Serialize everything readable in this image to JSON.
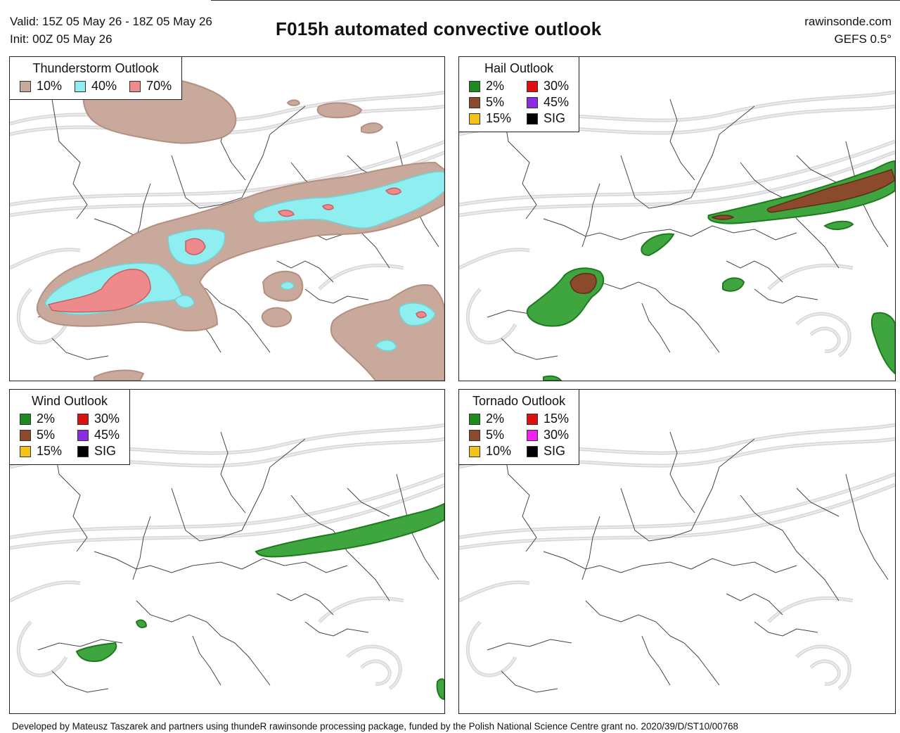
{
  "header": {
    "valid": "Valid: 15Z 05 May 26 - 18Z 05 May 26",
    "init": "Init: 00Z 05 May 26",
    "title": "F015h automated convective outlook",
    "site": "rawinsonde.com",
    "model": "GEFS 0.5°"
  },
  "panels": {
    "thunderstorm": {
      "title": "Thunderstorm Outlook",
      "items": [
        {
          "label": "10%",
          "color": "#c9a99b"
        },
        {
          "label": "40%",
          "color": "#8feff0"
        },
        {
          "label": "70%",
          "color": "#ef8a8c"
        }
      ]
    },
    "hail": {
      "title": "Hail Outlook",
      "items": [
        {
          "label": "2%",
          "color": "#1f8a1f"
        },
        {
          "label": "30%",
          "color": "#dd1111"
        },
        {
          "label": "5%",
          "color": "#8b4a2b"
        },
        {
          "label": "45%",
          "color": "#8b2be2"
        },
        {
          "label": "15%",
          "color": "#f3c21b"
        },
        {
          "label": "SIG",
          "color": "#000000"
        }
      ]
    },
    "wind": {
      "title": "Wind Outlook",
      "items": [
        {
          "label": "2%",
          "color": "#1f8a1f"
        },
        {
          "label": "30%",
          "color": "#dd1111"
        },
        {
          "label": "5%",
          "color": "#8b4a2b"
        },
        {
          "label": "45%",
          "color": "#8b2be2"
        },
        {
          "label": "15%",
          "color": "#f3c21b"
        },
        {
          "label": "SIG",
          "color": "#000000"
        }
      ]
    },
    "tornado": {
      "title": "Tornado Outlook",
      "items": [
        {
          "label": "2%",
          "color": "#1f8a1f"
        },
        {
          "label": "15%",
          "color": "#dd1111"
        },
        {
          "label": "5%",
          "color": "#8b4a2b"
        },
        {
          "label": "30%",
          "color": "#ee22ee"
        },
        {
          "label": "10%",
          "color": "#f3c21b"
        },
        {
          "label": "SIG",
          "color": "#000000"
        }
      ]
    }
  },
  "footer": "Developed by Mateusz Taszarek and partners using thundeR rawinsonde processing package, funded by the Polish National Science Centre grant no. 2020/39/D/ST10/00768"
}
